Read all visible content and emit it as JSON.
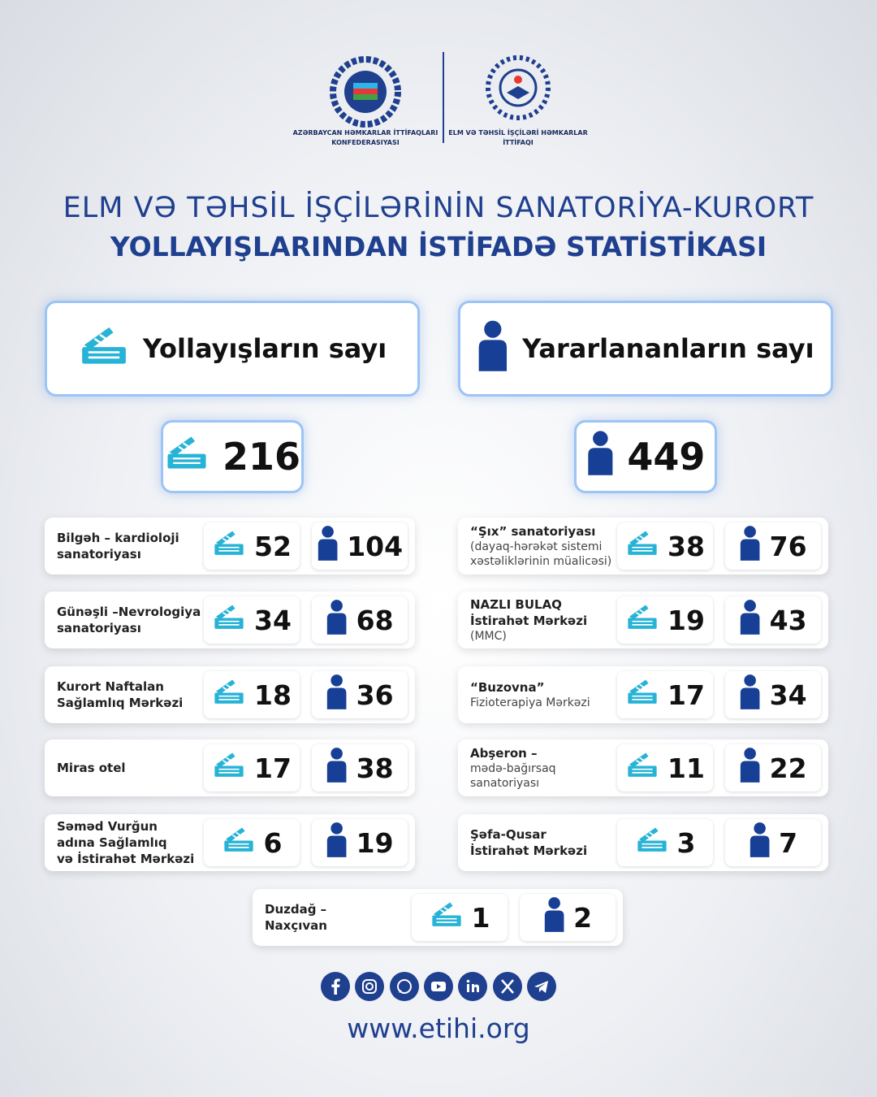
{
  "header": {
    "org_left": [
      "AZƏRBAYCAN HƏMKARLAR İTTİFAQLARI",
      "KONFEDERASIYASI"
    ],
    "org_right": [
      "ELM VƏ TƏHSİL İŞÇİLƏRİ HƏMKARLAR",
      "İTTİFAQI"
    ]
  },
  "title": [
    "ELM VƏ TƏHSİL İŞÇİLƏRİNİN SANATORİYA-KURORT",
    "YOLLAYIŞLARINDAN İSTİFADƏ STATİSTİKASI"
  ],
  "summary": {
    "tickets_label": "Yollayışların sayı",
    "beneficiaries_label": "Yararlananların sayı",
    "tickets_total": 216,
    "beneficiaries_total": 449
  },
  "facilities": [
    {
      "name": [
        "Bilgəh – kardioloji",
        "sanatoriyası"
      ],
      "note": [],
      "tickets": 52,
      "beneficiaries": 104
    },
    {
      "name": [
        "“Şıx” sanatoriyası"
      ],
      "note": [
        "(dayaq-hərəkət sistemi",
        "xəstəliklərinin müalicəsi)"
      ],
      "tickets": 38,
      "beneficiaries": 76
    },
    {
      "name": [
        "Günəşli –Nevrologiya",
        "sanatoriyası"
      ],
      "note": [],
      "tickets": 34,
      "beneficiaries": 68
    },
    {
      "name": [
        "NAZLI BULAQ",
        "İstirahət Mərkəzi"
      ],
      "note": [
        "(MMC)"
      ],
      "tickets": 19,
      "beneficiaries": 43
    },
    {
      "name": [
        "Kurort Naftalan",
        "Sağlamlıq Mərkəzi"
      ],
      "note": [],
      "tickets": 18,
      "beneficiaries": 36
    },
    {
      "name": [
        "“Buzovna”"
      ],
      "note": [
        "Fizioterapiya Mərkəzi"
      ],
      "tickets": 17,
      "beneficiaries": 34
    },
    {
      "name": [
        "Miras otel"
      ],
      "note": [],
      "tickets": 17,
      "beneficiaries": 38
    },
    {
      "name": [
        "Abşeron –"
      ],
      "note": [
        "mədə-bağırsaq",
        "sanatoriyası"
      ],
      "tickets": 11,
      "beneficiaries": 22
    },
    {
      "name": [
        "Səməd Vurğun",
        "adına Sağlamlıq",
        "və İstirahət Mərkəzi"
      ],
      "note": [],
      "tickets": 6,
      "beneficiaries": 19
    },
    {
      "name": [
        "Şəfa-Qusar",
        "İstirahət Mərkəzi"
      ],
      "note": [],
      "tickets": 3,
      "beneficiaries": 7
    },
    {
      "name": [
        "Duzdağ –",
        "Naxçıvan"
      ],
      "note": [],
      "tickets": 1,
      "beneficiaries": 2
    }
  ],
  "footer": {
    "url": "www.etihi.org"
  }
}
